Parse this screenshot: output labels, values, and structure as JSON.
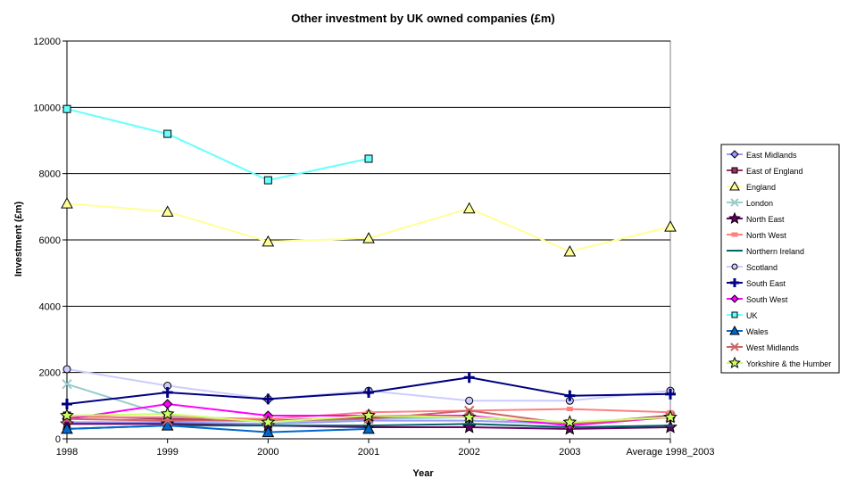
{
  "chart_data": {
    "type": "line",
    "title": "Other investment by UK owned companies (£m)",
    "xlabel": "Year",
    "ylabel": "Investment (£m)",
    "categories": [
      "1998",
      "1999",
      "2000",
      "2001",
      "2002",
      "2003",
      "Average 1998_2003"
    ],
    "ylim": [
      0,
      12000
    ],
    "yticks": [
      0,
      2000,
      4000,
      6000,
      8000,
      10000,
      12000
    ],
    "grid": "horizontal",
    "legend_position": "right",
    "series": [
      {
        "name": "East Midlands",
        "color": "#9999ff",
        "marker": "diamond",
        "values": [
          500,
          500,
          450,
          550,
          550,
          450,
          650
        ]
      },
      {
        "name": "East of England",
        "color": "#993366",
        "marker": "square",
        "values": [
          700,
          600,
          550,
          650,
          650,
          450,
          700
        ]
      },
      {
        "name": "England",
        "color": "#ffff99",
        "marker": "triangle",
        "values": [
          7100,
          6850,
          5950,
          6050,
          6950,
          5650,
          6400
        ]
      },
      {
        "name": "London",
        "color": "#99cccc",
        "marker": "x",
        "values": [
          1650,
          700,
          500,
          600,
          650,
          450,
          650
        ]
      },
      {
        "name": "North East",
        "color": "#660066",
        "marker": "star",
        "values": [
          450,
          450,
          400,
          350,
          350,
          300,
          350
        ]
      },
      {
        "name": "North West",
        "color": "#ff8080",
        "marker": "rect",
        "values": [
          650,
          650,
          600,
          800,
          850,
          900,
          800
        ]
      },
      {
        "name": "Northern Ireland",
        "color": "#006666",
        "marker": "dash",
        "values": [
          300,
          400,
          400,
          400,
          450,
          350,
          400
        ]
      },
      {
        "name": "Scotland",
        "color": "#ccccff",
        "marker": "circle",
        "values": [
          2100,
          1600,
          1200,
          1450,
          1150,
          1150,
          1450
        ]
      },
      {
        "name": "South East",
        "color": "#000080",
        "marker": "plus",
        "values": [
          1050,
          1400,
          1200,
          1400,
          1850,
          1300,
          1350
        ]
      },
      {
        "name": "South West",
        "color": "#ff00ff",
        "marker": "diamond",
        "values": [
          600,
          1050,
          700,
          700,
          700,
          400,
          650
        ]
      },
      {
        "name": "UK",
        "color": "#66ffff",
        "marker": "square",
        "values": [
          9950,
          9200,
          7800,
          8450,
          null,
          null,
          null
        ]
      },
      {
        "name": "Wales",
        "color": "#0066cc",
        "marker": "triangle",
        "values": [
          300,
          400,
          200,
          300,
          null,
          null,
          null
        ]
      },
      {
        "name": "West Midlands",
        "color": "#cc6666",
        "marker": "x",
        "values": [
          600,
          550,
          550,
          600,
          850,
          450,
          650
        ]
      },
      {
        "name": "Yorkshire & the Humber",
        "color": "#ccff66",
        "marker": "star",
        "values": [
          700,
          750,
          500,
          700,
          650,
          500,
          650
        ]
      }
    ]
  }
}
